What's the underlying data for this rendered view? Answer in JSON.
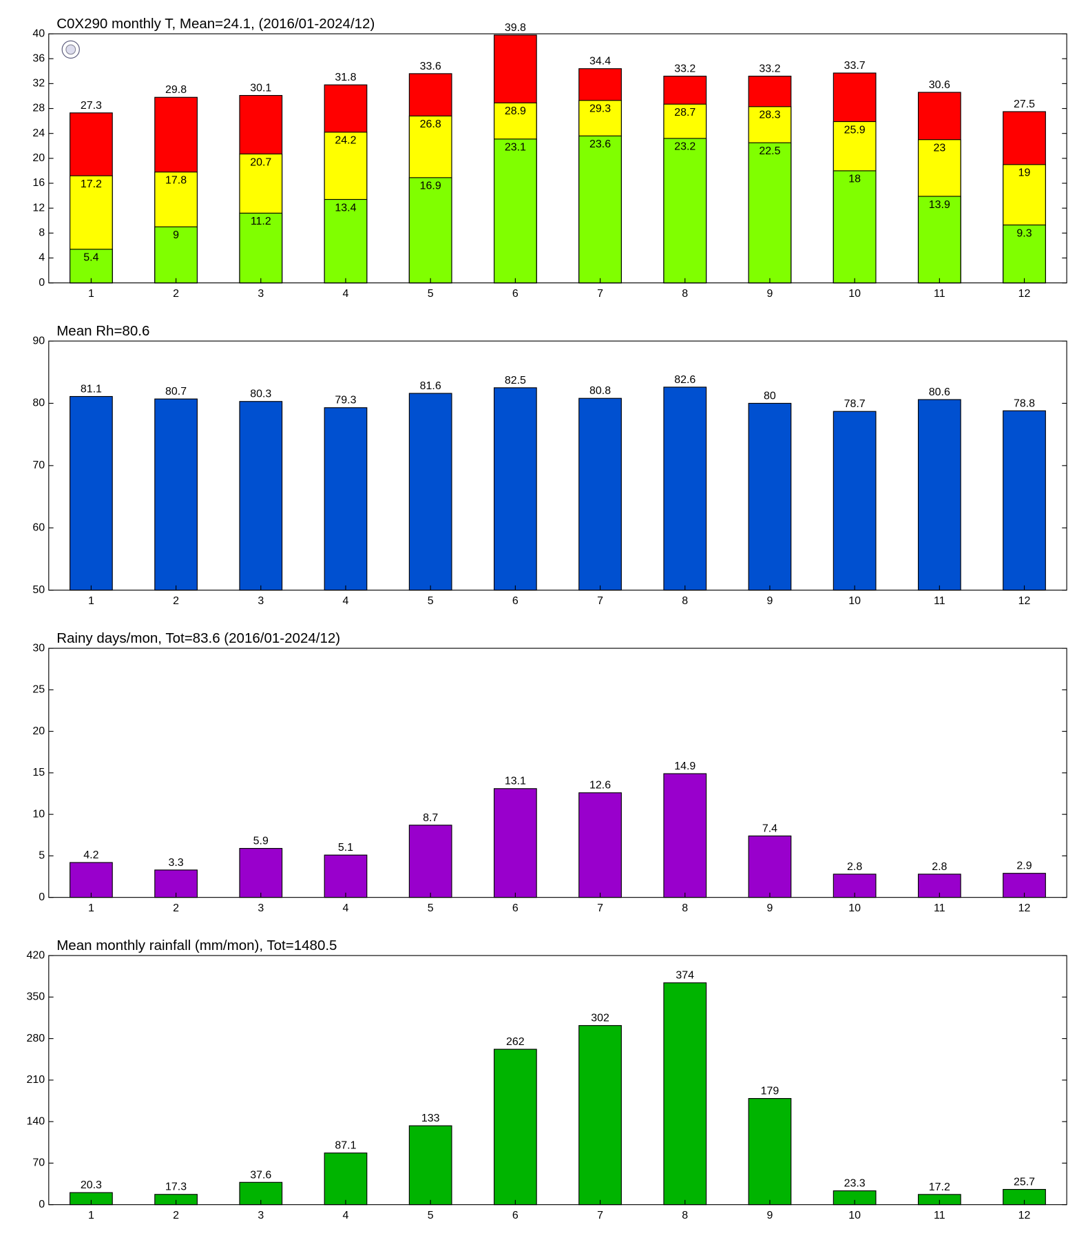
{
  "chart_data": [
    {
      "type": "overlay_bar",
      "title": "C0X290 monthly T, Mean=24.1, (2016/01-2024/12)",
      "categories": [
        "1",
        "2",
        "3",
        "4",
        "5",
        "6",
        "7",
        "8",
        "9",
        "10",
        "11",
        "12"
      ],
      "series": [
        {
          "color": "#ff0000",
          "values": [
            27.3,
            29.8,
            30.1,
            31.8,
            33.6,
            39.8,
            34.4,
            33.2,
            33.2,
            33.7,
            30.6,
            27.5
          ]
        },
        {
          "color": "#ffff00",
          "values": [
            17.2,
            17.8,
            20.7,
            24.2,
            26.8,
            28.9,
            29.3,
            28.7,
            28.3,
            25.9,
            23,
            19
          ]
        },
        {
          "color": "#80ff00",
          "values": [
            5.4,
            9,
            11.2,
            13.4,
            16.9,
            23.1,
            23.6,
            23.2,
            22.5,
            18,
            13.9,
            9.3
          ]
        }
      ],
      "ylim": [
        0,
        40
      ],
      "yticks": [
        0,
        4,
        8,
        12,
        16,
        20,
        24,
        28,
        32,
        36,
        40
      ]
    },
    {
      "type": "bar",
      "title": "Mean Rh=80.6",
      "categories": [
        "1",
        "2",
        "3",
        "4",
        "5",
        "6",
        "7",
        "8",
        "9",
        "10",
        "11",
        "12"
      ],
      "values": [
        81.1,
        80.7,
        80.3,
        79.3,
        81.6,
        82.5,
        80.8,
        82.6,
        80,
        78.7,
        80.6,
        78.8
      ],
      "color": "#0050d0",
      "ylim": [
        50,
        90
      ],
      "yticks": [
        50,
        60,
        70,
        80,
        90
      ]
    },
    {
      "type": "bar",
      "title": "Rainy days/mon, Tot=83.6 (2016/01-2024/12)",
      "categories": [
        "1",
        "2",
        "3",
        "4",
        "5",
        "6",
        "7",
        "8",
        "9",
        "10",
        "11",
        "12"
      ],
      "values": [
        4.2,
        3.3,
        5.9,
        5.1,
        8.7,
        13.1,
        12.6,
        14.9,
        7.4,
        2.8,
        2.8,
        2.9
      ],
      "color": "#9900cc",
      "ylim": [
        0,
        30
      ],
      "yticks": [
        0,
        5,
        10,
        15,
        20,
        25,
        30
      ]
    },
    {
      "type": "bar",
      "title": "Mean monthly rainfall (mm/mon), Tot=1480.5",
      "categories": [
        "1",
        "2",
        "3",
        "4",
        "5",
        "6",
        "7",
        "8",
        "9",
        "10",
        "11",
        "12"
      ],
      "values": [
        20.3,
        17.3,
        37.6,
        87.1,
        133,
        262,
        302,
        374,
        179,
        23.3,
        17.2,
        25.7
      ],
      "color": "#00b400",
      "ylim": [
        0,
        420
      ],
      "yticks": [
        0,
        70,
        140,
        210,
        280,
        350,
        420
      ]
    }
  ]
}
